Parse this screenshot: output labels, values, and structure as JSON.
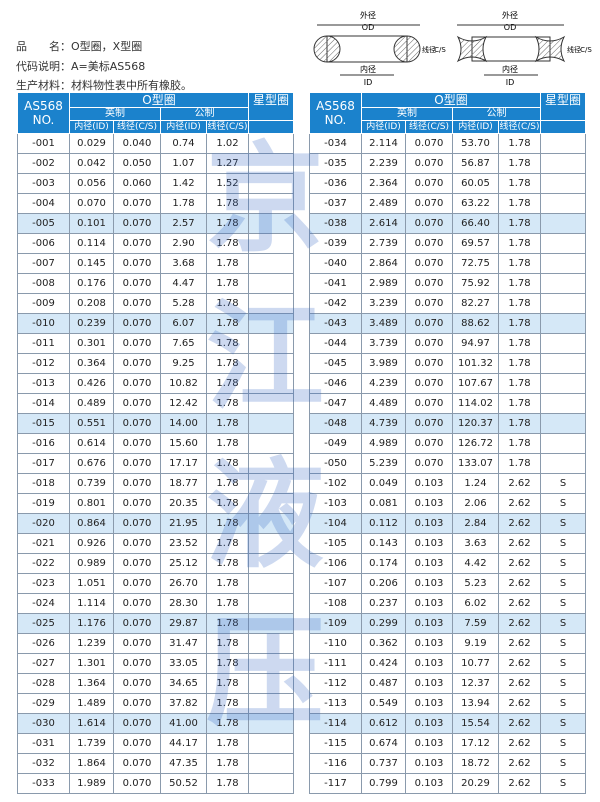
{
  "info": {
    "name_label": "品　　名：",
    "name_value": "O型圈，X型圈",
    "code_label": "代码说明：",
    "code_value": "A=美标AS568",
    "material_label": "生产材料：",
    "material_value": "材料物性表中所有橡胶。"
  },
  "diagram": {
    "od_cn": "外径",
    "od": "OD",
    "id_cn": "内径",
    "id": "ID",
    "cs_cn": "线径",
    "cs": "C/S"
  },
  "watermark": "京江液压",
  "header": {
    "no": "AS568 NO.",
    "oring": "O型圈",
    "xring": "星型圈",
    "imperial": "英制",
    "metric": "公制",
    "id_col": "内径(ID)",
    "cs_col": "线径(C/S)"
  },
  "colors": {
    "header_bg": "#1b82cc",
    "highlight_row": "#d5e8f7"
  },
  "left_rows": [
    [
      "-001",
      "0.029",
      "0.040",
      "0.74",
      "1.02",
      ""
    ],
    [
      "-002",
      "0.042",
      "0.050",
      "1.07",
      "1.27",
      ""
    ],
    [
      "-003",
      "0.056",
      "0.060",
      "1.42",
      "1.52",
      ""
    ],
    [
      "-004",
      "0.070",
      "0.070",
      "1.78",
      "1.78",
      ""
    ],
    [
      "-005",
      "0.101",
      "0.070",
      "2.57",
      "1.78",
      ""
    ],
    [
      "-006",
      "0.114",
      "0.070",
      "2.90",
      "1.78",
      ""
    ],
    [
      "-007",
      "0.145",
      "0.070",
      "3.68",
      "1.78",
      ""
    ],
    [
      "-008",
      "0.176",
      "0.070",
      "4.47",
      "1.78",
      ""
    ],
    [
      "-009",
      "0.208",
      "0.070",
      "5.28",
      "1.78",
      ""
    ],
    [
      "-010",
      "0.239",
      "0.070",
      "6.07",
      "1.78",
      ""
    ],
    [
      "-011",
      "0.301",
      "0.070",
      "7.65",
      "1.78",
      ""
    ],
    [
      "-012",
      "0.364",
      "0.070",
      "9.25",
      "1.78",
      ""
    ],
    [
      "-013",
      "0.426",
      "0.070",
      "10.82",
      "1.78",
      ""
    ],
    [
      "-014",
      "0.489",
      "0.070",
      "12.42",
      "1.78",
      ""
    ],
    [
      "-015",
      "0.551",
      "0.070",
      "14.00",
      "1.78",
      ""
    ],
    [
      "-016",
      "0.614",
      "0.070",
      "15.60",
      "1.78",
      ""
    ],
    [
      "-017",
      "0.676",
      "0.070",
      "17.17",
      "1.78",
      ""
    ],
    [
      "-018",
      "0.739",
      "0.070",
      "18.77",
      "1.78",
      ""
    ],
    [
      "-019",
      "0.801",
      "0.070",
      "20.35",
      "1.78",
      ""
    ],
    [
      "-020",
      "0.864",
      "0.070",
      "21.95",
      "1.78",
      ""
    ],
    [
      "-021",
      "0.926",
      "0.070",
      "23.52",
      "1.78",
      ""
    ],
    [
      "-022",
      "0.989",
      "0.070",
      "25.12",
      "1.78",
      ""
    ],
    [
      "-023",
      "1.051",
      "0.070",
      "26.70",
      "1.78",
      ""
    ],
    [
      "-024",
      "1.114",
      "0.070",
      "28.30",
      "1.78",
      ""
    ],
    [
      "-025",
      "1.176",
      "0.070",
      "29.87",
      "1.78",
      ""
    ],
    [
      "-026",
      "1.239",
      "0.070",
      "31.47",
      "1.78",
      ""
    ],
    [
      "-027",
      "1.301",
      "0.070",
      "33.05",
      "1.78",
      ""
    ],
    [
      "-028",
      "1.364",
      "0.070",
      "34.65",
      "1.78",
      ""
    ],
    [
      "-029",
      "1.489",
      "0.070",
      "37.82",
      "1.78",
      ""
    ],
    [
      "-030",
      "1.614",
      "0.070",
      "41.00",
      "1.78",
      ""
    ],
    [
      "-031",
      "1.739",
      "0.070",
      "44.17",
      "1.78",
      ""
    ],
    [
      "-032",
      "1.864",
      "0.070",
      "47.35",
      "1.78",
      ""
    ],
    [
      "-033",
      "1.989",
      "0.070",
      "50.52",
      "1.78",
      ""
    ]
  ],
  "right_rows": [
    [
      "-034",
      "2.114",
      "0.070",
      "53.70",
      "1.78",
      ""
    ],
    [
      "-035",
      "2.239",
      "0.070",
      "56.87",
      "1.78",
      ""
    ],
    [
      "-036",
      "2.364",
      "0.070",
      "60.05",
      "1.78",
      ""
    ],
    [
      "-037",
      "2.489",
      "0.070",
      "63.22",
      "1.78",
      ""
    ],
    [
      "-038",
      "2.614",
      "0.070",
      "66.40",
      "1.78",
      ""
    ],
    [
      "-039",
      "2.739",
      "0.070",
      "69.57",
      "1.78",
      ""
    ],
    [
      "-040",
      "2.864",
      "0.070",
      "72.75",
      "1.78",
      ""
    ],
    [
      "-041",
      "2.989",
      "0.070",
      "75.92",
      "1.78",
      ""
    ],
    [
      "-042",
      "3.239",
      "0.070",
      "82.27",
      "1.78",
      ""
    ],
    [
      "-043",
      "3.489",
      "0.070",
      "88.62",
      "1.78",
      ""
    ],
    [
      "-044",
      "3.739",
      "0.070",
      "94.97",
      "1.78",
      ""
    ],
    [
      "-045",
      "3.989",
      "0.070",
      "101.32",
      "1.78",
      ""
    ],
    [
      "-046",
      "4.239",
      "0.070",
      "107.67",
      "1.78",
      ""
    ],
    [
      "-047",
      "4.489",
      "0.070",
      "114.02",
      "1.78",
      ""
    ],
    [
      "-048",
      "4.739",
      "0.070",
      "120.37",
      "1.78",
      ""
    ],
    [
      "-049",
      "4.989",
      "0.070",
      "126.72",
      "1.78",
      ""
    ],
    [
      "-050",
      "5.239",
      "0.070",
      "133.07",
      "1.78",
      ""
    ],
    [
      "-102",
      "0.049",
      "0.103",
      "1.24",
      "2.62",
      "S"
    ],
    [
      "-103",
      "0.081",
      "0.103",
      "2.06",
      "2.62",
      "S"
    ],
    [
      "-104",
      "0.112",
      "0.103",
      "2.84",
      "2.62",
      "S"
    ],
    [
      "-105",
      "0.143",
      "0.103",
      "3.63",
      "2.62",
      "S"
    ],
    [
      "-106",
      "0.174",
      "0.103",
      "4.42",
      "2.62",
      "S"
    ],
    [
      "-107",
      "0.206",
      "0.103",
      "5.23",
      "2.62",
      "S"
    ],
    [
      "-108",
      "0.237",
      "0.103",
      "6.02",
      "2.62",
      "S"
    ],
    [
      "-109",
      "0.299",
      "0.103",
      "7.59",
      "2.62",
      "S"
    ],
    [
      "-110",
      "0.362",
      "0.103",
      "9.19",
      "2.62",
      "S"
    ],
    [
      "-111",
      "0.424",
      "0.103",
      "10.77",
      "2.62",
      "S"
    ],
    [
      "-112",
      "0.487",
      "0.103",
      "12.37",
      "2.62",
      "S"
    ],
    [
      "-113",
      "0.549",
      "0.103",
      "13.94",
      "2.62",
      "S"
    ],
    [
      "-114",
      "0.612",
      "0.103",
      "15.54",
      "2.62",
      "S"
    ],
    [
      "-115",
      "0.674",
      "0.103",
      "17.12",
      "2.62",
      "S"
    ],
    [
      "-116",
      "0.737",
      "0.103",
      "18.72",
      "2.62",
      "S"
    ],
    [
      "-117",
      "0.799",
      "0.103",
      "20.29",
      "2.62",
      "S"
    ]
  ]
}
